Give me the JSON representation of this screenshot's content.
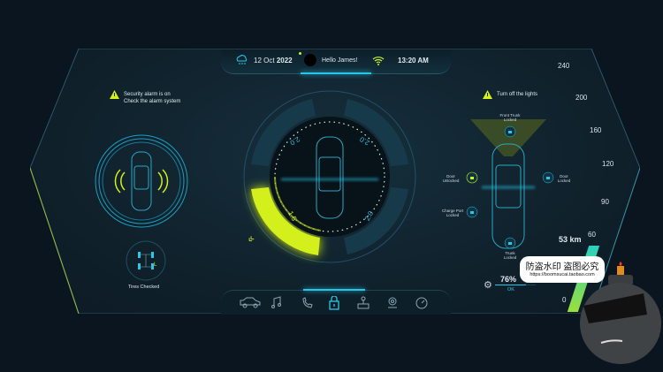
{
  "status_bar": {
    "date_day": "12 Oct",
    "date_year": "2022",
    "greeting": "Hello James!",
    "time": "13:20 AM",
    "weather_icon": "cloud-rain-icon",
    "wifi_icon": "wifi-icon"
  },
  "left": {
    "alert_line1": "Security alarm is on",
    "alert_line2": "Check the alarm system",
    "tires_label": "Tires Checked",
    "tire_marks": [
      "F",
      "F",
      "F",
      "L"
    ]
  },
  "center": {
    "tire_pressures": [
      "2.0",
      "2.0",
      "1.5",
      "2.0"
    ],
    "accent": "#d4f01c"
  },
  "right": {
    "alert": "Turn off the lights",
    "front_trunk": [
      "Front Trunk",
      "Locked"
    ],
    "door_left": [
      "Door",
      "Unlocked"
    ],
    "door_right": [
      "Door",
      "Locked"
    ],
    "charge_port": [
      "Charge Port",
      "Locked"
    ],
    "trunk": [
      "Trunk",
      "Locked"
    ]
  },
  "speedometer": {
    "ticks": [
      "240",
      "200",
      "160",
      "120",
      "90",
      "60",
      "0"
    ],
    "distance": "53 km"
  },
  "battery": {
    "percent": "76%",
    "status": "OK",
    "level": 0.76
  },
  "nav": [
    "car-icon",
    "music-icon",
    "phone-icon",
    "lock-icon",
    "joystick-icon",
    "location-icon",
    "gauge-icon"
  ],
  "watermark": {
    "line1": "防盗水印 盗图必究",
    "line2": "https://boomsucai.taobao.com"
  },
  "colors": {
    "accent_green": "#d4f01c",
    "accent_cyan": "#29c6e8",
    "background": "#0a1520"
  }
}
